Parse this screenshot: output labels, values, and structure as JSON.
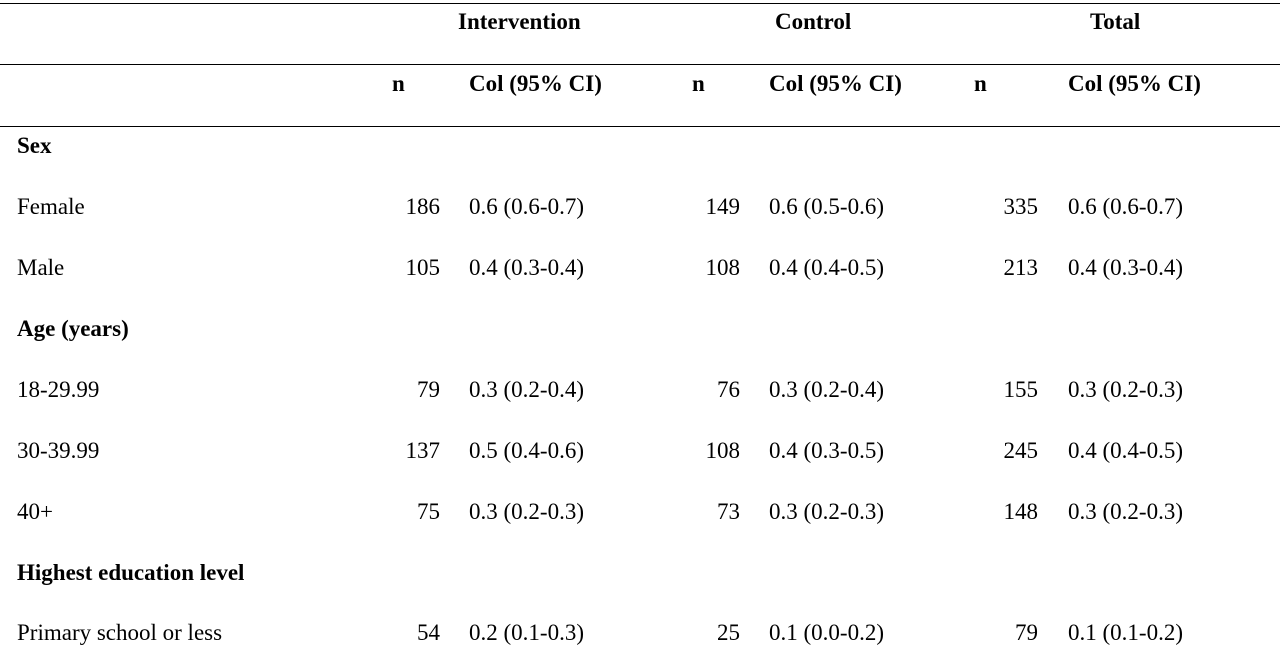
{
  "table": {
    "groups": [
      "Intervention",
      "Control",
      "Total"
    ],
    "subheaders": [
      "n",
      "Col (95% CI)",
      "n",
      "Col (95% CI)",
      "n",
      "Col (95% CI)"
    ],
    "sections": [
      {
        "title": "Sex",
        "rows": [
          {
            "label": "Female",
            "cells": [
              "186",
              "0.6 (0.6-0.7)",
              "149",
              "0.6 (0.5-0.6)",
              "335",
              "0.6 (0.6-0.7)"
            ]
          },
          {
            "label": "Male",
            "cells": [
              "105",
              "0.4 (0.3-0.4)",
              "108",
              "0.4 (0.4-0.5)",
              "213",
              "0.4 (0.3-0.4)"
            ]
          }
        ]
      },
      {
        "title": "Age (years)",
        "rows": [
          {
            "label": "18-29.99",
            "cells": [
              "79",
              "0.3 (0.2-0.4)",
              "76",
              "0.3 (0.2-0.4)",
              "155",
              "0.3 (0.2-0.3)"
            ]
          },
          {
            "label": "30-39.99",
            "cells": [
              "137",
              "0.5 (0.4-0.6)",
              "108",
              "0.4 (0.3-0.5)",
              "245",
              "0.4 (0.4-0.5)"
            ]
          },
          {
            "label": "40+",
            "cells": [
              "75",
              "0.3 (0.2-0.3)",
              "73",
              "0.3 (0.2-0.3)",
              "148",
              "0.3 (0.2-0.3)"
            ]
          }
        ]
      },
      {
        "title": "Highest education level",
        "rows": [
          {
            "label": "Primary school or less",
            "cells": [
              "54",
              "0.2 (0.1-0.3)",
              "25",
              "0.1 (0.0-0.2)",
              "79",
              "0.1 (0.1-0.2)"
            ]
          }
        ]
      }
    ]
  }
}
